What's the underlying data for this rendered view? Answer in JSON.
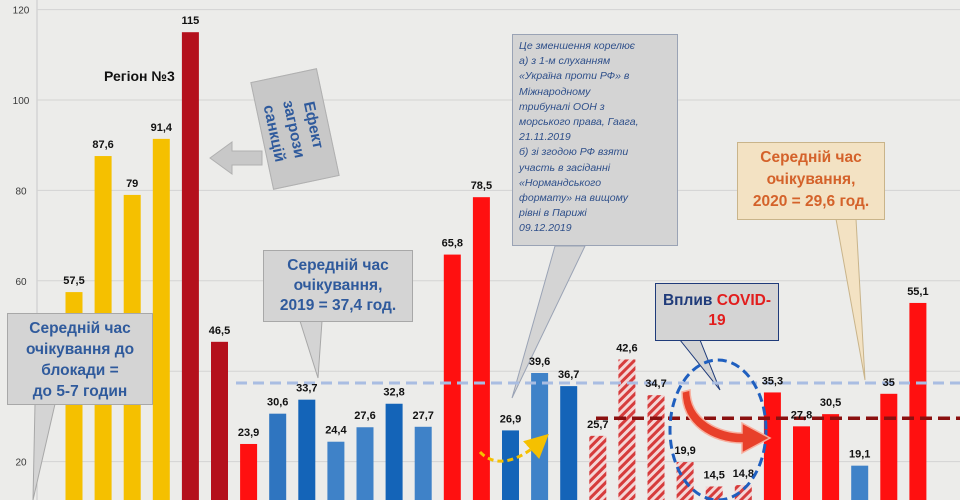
{
  "chart_data": {
    "type": "bar",
    "title": "",
    "xlabel": "",
    "ylabel": "",
    "ylim": [
      0,
      120
    ],
    "yticks": [
      20,
      40,
      60,
      80,
      100,
      120
    ],
    "grid": true,
    "legend": "none",
    "values": [
      57.5,
      87.6,
      79,
      91.4,
      115,
      46.5,
      23.9,
      30.6,
      33.7,
      24.4,
      27.6,
      32.8,
      27.7,
      65.8,
      78.5,
      26.9,
      39.6,
      36.7,
      25.7,
      42.6,
      34.7,
      19.9,
      14.5,
      14.8,
      35.3,
      27.8,
      30.5,
      19.1,
      35,
      55.1
    ],
    "value_labels": [
      "57,5",
      "87,6",
      "79",
      "91,4",
      "115",
      "46,5",
      "23,9",
      "30,6",
      "33,7",
      "24,4",
      "27,6",
      "32,8",
      "27,7",
      "65,8",
      "78,5",
      "26,9",
      "39,6",
      "36,7",
      "25,7",
      "42,6",
      "34,7",
      "19,9",
      "14,5",
      "14,8",
      "35,3",
      "27,8",
      "30,5",
      "19,1",
      "35",
      "55,1"
    ],
    "bar_colors": [
      "#f5c000",
      "#f5c000",
      "#f5c000",
      "#f5c000",
      "#b4101c",
      "#b4101c",
      "#ff1010",
      "#2f75c0",
      "#1464b8",
      "#3f82c8",
      "#3f82c8",
      "#1464b8",
      "#3f82c8",
      "#ff1010",
      "#ff1010",
      "#1464b8",
      "#3f82c8",
      "#1464b8",
      "#d94040",
      "#d94040",
      "#d94040",
      "#d94040",
      "#d94040",
      "#d94040",
      "#ff1010",
      "#ff1010",
      "#ff1010",
      "#3f82c8",
      "#ff1010",
      "#ff1010"
    ],
    "bar_patterns": [
      "solid",
      "solid",
      "solid",
      "solid",
      "solid",
      "solid",
      "solid",
      "solid",
      "solid",
      "solid",
      "solid",
      "solid",
      "solid",
      "solid",
      "solid",
      "solid",
      "solid",
      "solid",
      "hatched",
      "hatched",
      "hatched",
      "hatched",
      "hatched",
      "hatched",
      "solid",
      "solid",
      "solid",
      "solid",
      "solid",
      "solid"
    ],
    "reference_lines": [
      {
        "value": 37.4,
        "color": "#a9bde2",
        "style": "dashed"
      },
      {
        "value": 29.6,
        "color": "#8a1010",
        "style": "dashed"
      }
    ]
  },
  "annotations": {
    "region": "Регіон №3",
    "sanctions": [
      "Ефект загрози",
      "санкцій"
    ],
    "avg_2019": [
      "Середній час",
      "очікування,",
      "2019 = 37,4 год."
    ],
    "avg_2020": [
      "Середній час",
      "очікування,",
      "2020 = 29,6 год."
    ],
    "blockade": [
      "Середній час",
      "очікування до",
      "блокади =",
      "до 5-7 годин"
    ],
    "covid": [
      "Вплив",
      "COVID-19"
    ],
    "note": [
      "Це зменшення корелює",
      "а) з 1-м слуханням",
      "«Україна проти РФ» в",
      "Міжнародному",
      "трибуналі ООН з",
      "морського права, Гаага,",
      "21.11.2019",
      "б) зі згодою РФ взяти",
      "участь в засіданні",
      "«Нормандського",
      "формату» на вищому",
      "рівні в Парижі",
      "09.12.2019"
    ]
  }
}
